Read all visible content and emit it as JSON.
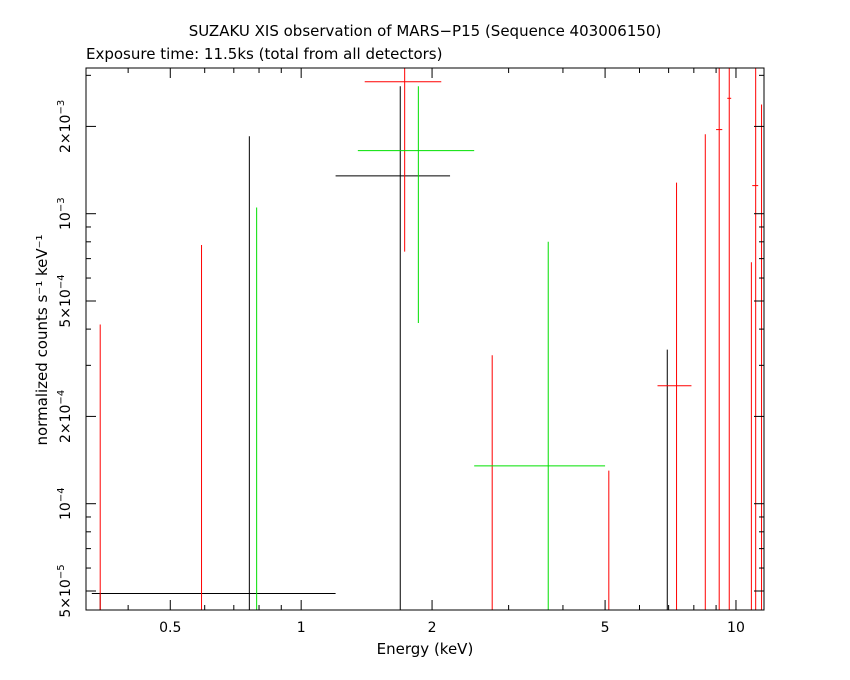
{
  "chart_data": {
    "type": "scatter",
    "title": "SUZAKU XIS observation of MARS−P15 (Sequence 403006150)",
    "subtitle": "Exposure time: 11.5ks (total from all detectors)",
    "xlabel": "Energy (keV)",
    "ylabel": "normalized counts s⁻¹ keV⁻¹",
    "x_scale": "log",
    "y_scale": "log",
    "xlim": [
      0.32,
      11.6
    ],
    "ylim": [
      4.3e-05,
      0.00318
    ],
    "x_ticks": [
      {
        "value": 0.5,
        "label": "0.5"
      },
      {
        "value": 1,
        "label": "1"
      },
      {
        "value": 2,
        "label": "2"
      },
      {
        "value": 5,
        "label": "5"
      },
      {
        "value": 10,
        "label": "10"
      }
    ],
    "y_ticks": [
      {
        "value": 5e-05,
        "mant": "5×10",
        "exp": "−5"
      },
      {
        "value": 0.0001,
        "mant": "10",
        "exp": "−4"
      },
      {
        "value": 0.0002,
        "mant": "2×10",
        "exp": "−4"
      },
      {
        "value": 0.0005,
        "mant": "5×10",
        "exp": "−4"
      },
      {
        "value": 0.001,
        "mant": "10",
        "exp": "−3"
      },
      {
        "value": 0.002,
        "mant": "2×10",
        "exp": "−3"
      }
    ],
    "grid": false,
    "series": [
      {
        "color": "#000000",
        "points": [
          {
            "x": 0.345,
            "xlo": 0.33,
            "xhi": 1.2,
            "y": 4.9e-05,
            "ylo": 4.3e-05,
            "yhi": 4.9e-05
          },
          {
            "x": 0.76,
            "xlo": 0.76,
            "xhi": 0.76,
            "y": 4.3e-05,
            "ylo": 4.3e-05,
            "yhi": 0.00185
          },
          {
            "x": 1.69,
            "xlo": 1.2,
            "xhi": 2.2,
            "y": 0.00135,
            "ylo": 4.3e-05,
            "yhi": 0.00275
          },
          {
            "x": 6.95,
            "xlo": 6.95,
            "xhi": 6.95,
            "y": 4.3e-05,
            "ylo": 4.3e-05,
            "yhi": 0.00034
          }
        ]
      },
      {
        "color": "#ff0000",
        "points": [
          {
            "x": 0.345,
            "xlo": 0.345,
            "xhi": 0.345,
            "y": 4.3e-05,
            "ylo": 4.3e-05,
            "yhi": 0.000415
          },
          {
            "x": 0.59,
            "xlo": 0.59,
            "xhi": 0.59,
            "y": 4.3e-05,
            "ylo": 4.3e-05,
            "yhi": 0.00078
          },
          {
            "x": 1.73,
            "xlo": 1.4,
            "xhi": 2.1,
            "y": 0.00285,
            "ylo": 0.00074,
            "yhi": 0.00318
          },
          {
            "x": 2.75,
            "xlo": 2.75,
            "xhi": 2.75,
            "y": 4.3e-05,
            "ylo": 4.3e-05,
            "yhi": 0.000325
          },
          {
            "x": 5.1,
            "xlo": 5.1,
            "xhi": 5.1,
            "y": 4.3e-05,
            "ylo": 4.3e-05,
            "yhi": 0.00013
          },
          {
            "x": 7.3,
            "xlo": 6.6,
            "xhi": 7.9,
            "y": 0.000255,
            "ylo": 4.3e-05,
            "yhi": 0.00128
          },
          {
            "x": 8.5,
            "xlo": 8.5,
            "xhi": 8.5,
            "y": 4.3e-05,
            "ylo": 4.3e-05,
            "yhi": 0.00188
          },
          {
            "x": 9.15,
            "xlo": 9.0,
            "xhi": 9.3,
            "y": 0.00195,
            "ylo": 4.3e-05,
            "yhi": 0.00318
          },
          {
            "x": 9.65,
            "xlo": 9.55,
            "xhi": 9.75,
            "y": 0.0025,
            "ylo": 4.3e-05,
            "yhi": 0.00318
          },
          {
            "x": 10.85,
            "xlo": 10.85,
            "xhi": 10.85,
            "y": 4.3e-05,
            "ylo": 4.3e-05,
            "yhi": 0.00068
          },
          {
            "x": 11.1,
            "xlo": 10.9,
            "xhi": 11.25,
            "y": 0.00125,
            "ylo": 4.3e-05,
            "yhi": 0.00318
          },
          {
            "x": 11.45,
            "xlo": 11.45,
            "xhi": 11.45,
            "y": 4.3e-05,
            "ylo": 4.3e-05,
            "yhi": 0.00238
          }
        ]
      },
      {
        "color": "#00e000",
        "points": [
          {
            "x": 0.79,
            "xlo": 0.79,
            "xhi": 0.79,
            "y": 4.3e-05,
            "ylo": 4.3e-05,
            "yhi": 0.00105
          },
          {
            "x": 1.86,
            "xlo": 1.35,
            "xhi": 2.5,
            "y": 0.00165,
            "ylo": 0.00042,
            "yhi": 0.00275
          },
          {
            "x": 3.7,
            "xlo": 2.5,
            "xhi": 5.0,
            "y": 0.000135,
            "ylo": 4.3e-05,
            "yhi": 0.0008
          }
        ]
      }
    ]
  }
}
